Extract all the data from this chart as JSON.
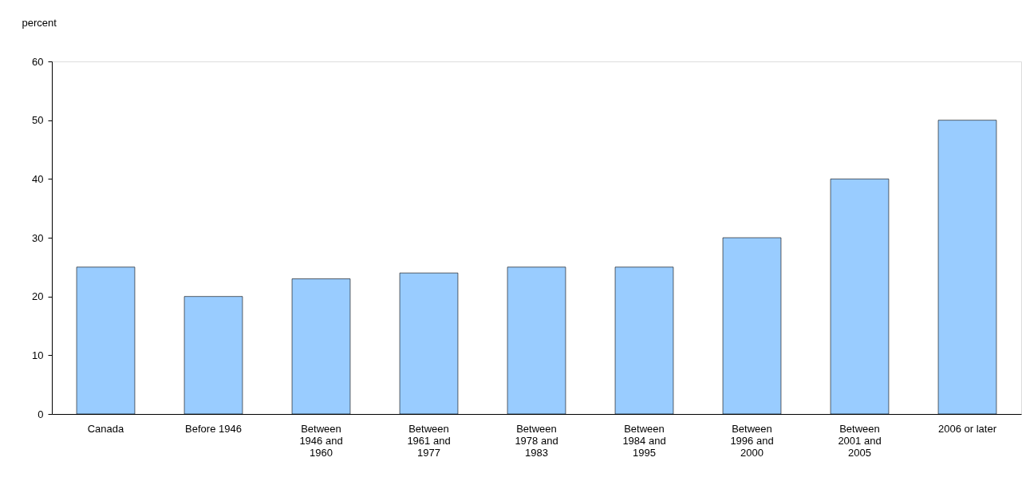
{
  "chart_data": {
    "type": "bar",
    "ylabel": "percent",
    "categories": [
      "Canada",
      "Before 1946",
      "Between 1946 and 1960",
      "Between 1961 and 1977",
      "Between 1978 and 1983",
      "Between 1984 and 1995",
      "Between 1996 and 2000",
      "Between 2001 and 2005",
      "2006 or later"
    ],
    "values": [
      25,
      20,
      23,
      24,
      25,
      25,
      30,
      40,
      50
    ],
    "color": "#99ccff",
    "ylim": [
      0,
      60
    ],
    "yticks": [
      0,
      10,
      20,
      30,
      40,
      50,
      60
    ],
    "grid": false
  }
}
